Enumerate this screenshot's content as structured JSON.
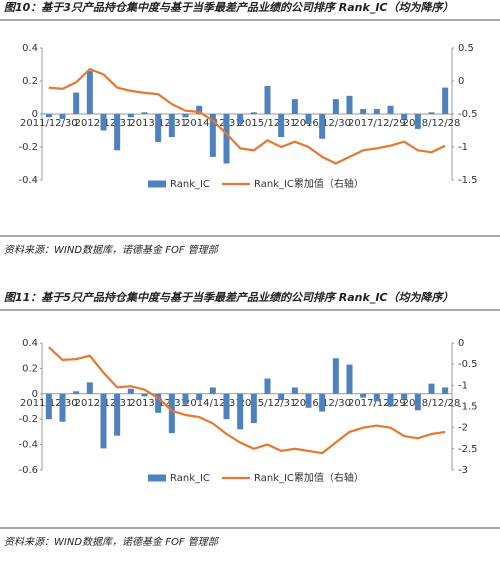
{
  "chart_data": [
    {
      "type": "bar_line",
      "title": "图10：基于3只产品持仓集中度与基于当季最差产品业绩的公司排序 Rank_IC（均为降序）",
      "source": "资料来源：WIND数据库，诺德基金 FOF 管理部",
      "categories": [
        "2011/12/30",
        null,
        null,
        null,
        "2012/12/31",
        null,
        null,
        null,
        "2013/12/31",
        null,
        null,
        null,
        "2014/12/31",
        null,
        null,
        null,
        "2015/12/31",
        null,
        null,
        null,
        "2016/12/30",
        null,
        null,
        null,
        "2017/12/29",
        null,
        null,
        null,
        "2018/12/28",
        null
      ],
      "series": [
        {
          "name": "Rank_IC",
          "color": "#4f81bd",
          "values": [
            -0.02,
            -0.03,
            0.13,
            0.26,
            -0.1,
            -0.22,
            -0.02,
            0.01,
            -0.17,
            -0.14,
            -0.02,
            0.05,
            -0.26,
            -0.3,
            -0.06,
            0.01,
            0.17,
            -0.14,
            0.09,
            -0.06,
            -0.15,
            0.09,
            0.11,
            0.03,
            0.03,
            0.05,
            -0.03,
            -0.09,
            0.01,
            0.16
          ]
        },
        {
          "name": "Rank_IC累加值（右轴）",
          "color": "#e8772e",
          "axis": "y2",
          "values": [
            -0.1,
            -0.12,
            -0.02,
            0.18,
            0.1,
            -0.1,
            -0.15,
            -0.18,
            -0.2,
            -0.35,
            -0.45,
            -0.47,
            -0.6,
            -0.8,
            -1.02,
            -1.05,
            -0.9,
            -1.0,
            -0.92,
            -1.0,
            -1.15,
            -1.25,
            -1.15,
            -1.05,
            -1.02,
            -0.98,
            -0.92,
            -1.05,
            -1.08,
            -0.98
          ]
        }
      ],
      "ylim": [
        -0.4,
        0.4
      ],
      "yticks": [
        -0.4,
        -0.2,
        0,
        0.2,
        0.4
      ],
      "y2lim": [
        -1.5,
        0.5
      ],
      "y2ticks": [
        -1.5,
        -1,
        -0.5,
        0,
        0.5
      ]
    },
    {
      "type": "bar_line",
      "title": "图11：基于5只产品持仓集中度与基于当季最差产品业绩的公司排序 Rank_IC（均为降序）",
      "source": "资料来源：WIND数据库，诺德基金 FOF 管理部",
      "categories": [
        "2011/12/30",
        null,
        null,
        null,
        "2012/12/31",
        null,
        null,
        null,
        "2013/12/31",
        null,
        null,
        null,
        "2014/12/31",
        null,
        null,
        null,
        "2015/12/31",
        null,
        null,
        null,
        "2016/12/30",
        null,
        null,
        null,
        "2017/12/29",
        null,
        null,
        null,
        "2018/12/28",
        null
      ],
      "series": [
        {
          "name": "Rank_IC",
          "color": "#4f81bd",
          "values": [
            -0.2,
            -0.22,
            0.02,
            0.09,
            -0.43,
            -0.33,
            0.04,
            -0.02,
            -0.15,
            -0.31,
            -0.08,
            -0.05,
            0.05,
            -0.2,
            -0.28,
            -0.23,
            0.12,
            -0.05,
            0.05,
            -0.11,
            -0.14,
            0.28,
            0.23,
            -0.03,
            -0.06,
            -0.1,
            -0.04,
            -0.13,
            0.08,
            0.05
          ]
        },
        {
          "name": "Rank_IC累加值（右轴）",
          "color": "#e8772e",
          "axis": "y2",
          "values": [
            -0.1,
            -0.4,
            -0.38,
            -0.3,
            -0.7,
            -1.05,
            -1.02,
            -1.1,
            -1.3,
            -1.6,
            -1.7,
            -1.75,
            -1.9,
            -2.15,
            -2.35,
            -2.5,
            -2.4,
            -2.55,
            -2.5,
            -2.55,
            -2.6,
            -2.35,
            -2.1,
            -2.0,
            -1.95,
            -2.0,
            -2.2,
            -2.25,
            -2.15,
            -2.1
          ]
        }
      ],
      "ylim": [
        -0.6,
        0.4
      ],
      "yticks": [
        -0.6,
        -0.4,
        -0.2,
        0,
        0.2,
        0.4
      ],
      "y2lim": [
        -3,
        0
      ],
      "y2ticks": [
        -3,
        -2.5,
        -2,
        -1.5,
        -1,
        -0.5,
        0
      ]
    }
  ]
}
